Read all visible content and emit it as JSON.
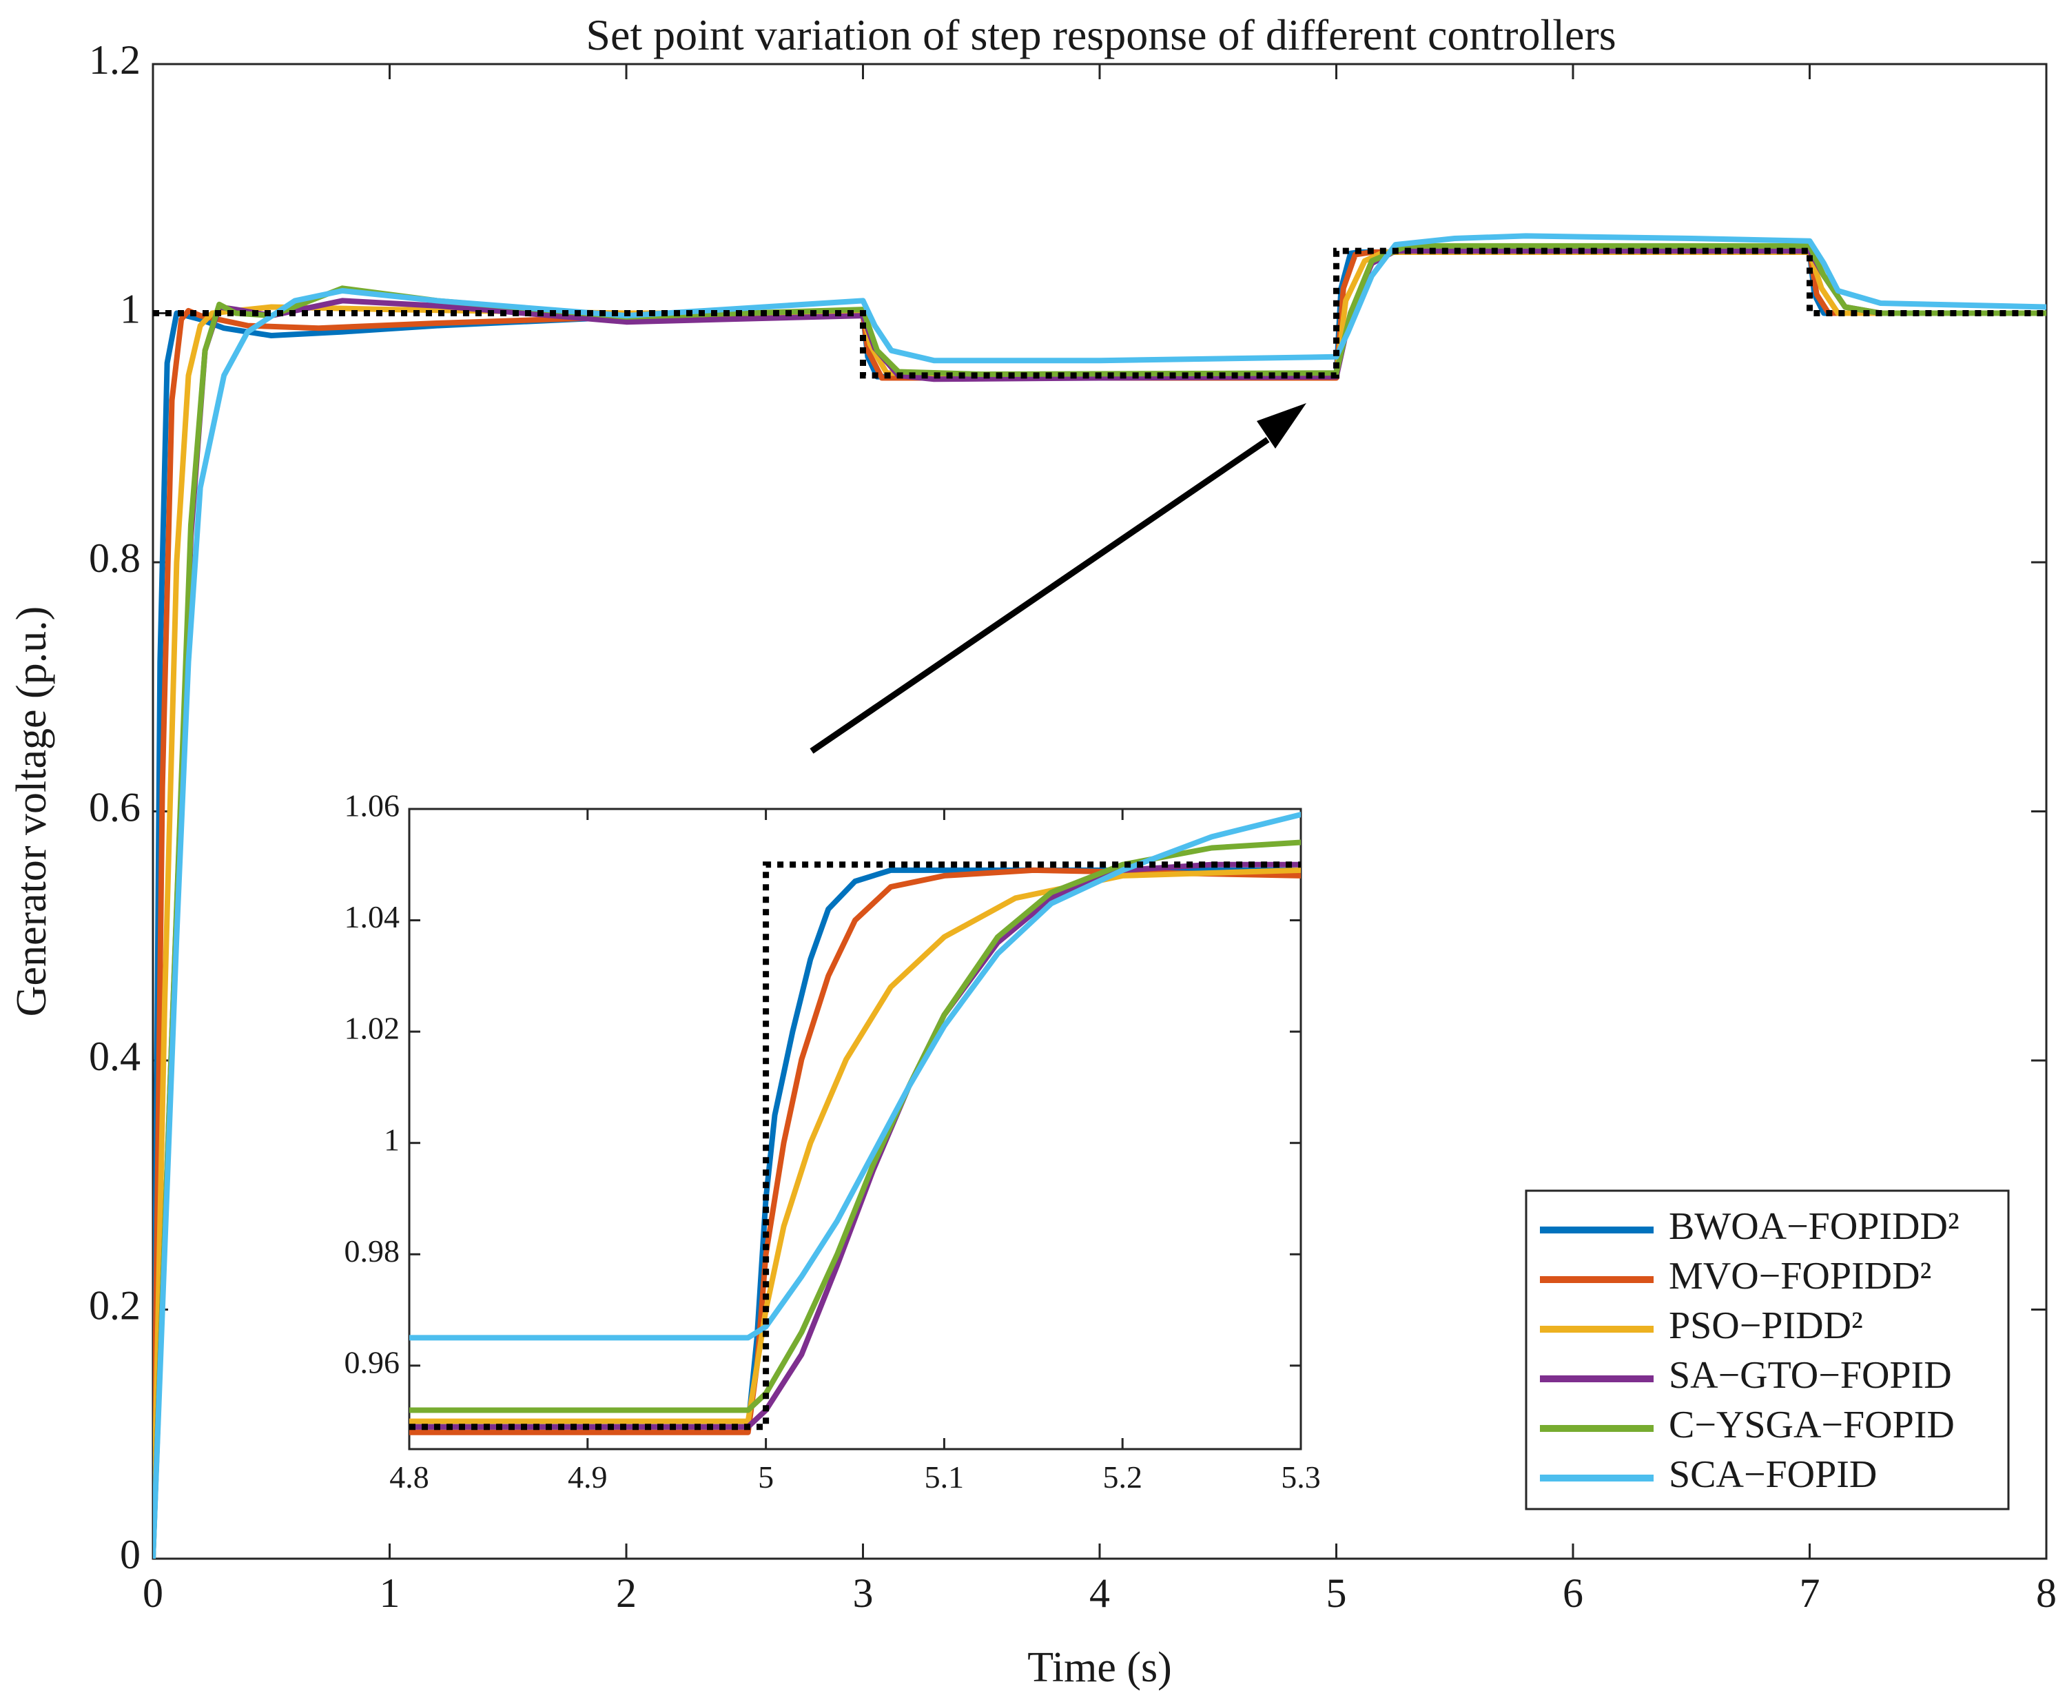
{
  "chart_data": [
    {
      "id": "main",
      "type": "line",
      "title": "Set point variation of step response of different controllers",
      "xlabel": "Time (s)",
      "ylabel": "Generator voltage (p.u.)",
      "xlim": [
        0,
        8
      ],
      "ylim": [
        0,
        1.2
      ],
      "xticks": [
        0,
        1,
        2,
        3,
        4,
        5,
        6,
        7,
        8
      ],
      "yticks": [
        0,
        0.2,
        0.4,
        0.6,
        0.8,
        1,
        1.2
      ],
      "xtick_labels": [
        "0",
        "1",
        "2",
        "3",
        "4",
        "5",
        "6",
        "7",
        "8"
      ],
      "ytick_labels": [
        "0",
        "0.2",
        "0.4",
        "0.6",
        "0.8",
        "1",
        "1.2"
      ],
      "grid": false,
      "legend_position": "bottom-right",
      "reference": {
        "name": "Set point",
        "color": "#000000",
        "style": "dotted",
        "points": [
          [
            0,
            1.0
          ],
          [
            3.0,
            1.0
          ],
          [
            3.0,
            0.95
          ],
          [
            5.0,
            0.95
          ],
          [
            5.0,
            1.05
          ],
          [
            7.0,
            1.05
          ],
          [
            7.0,
            1.0
          ],
          [
            8.0,
            1.0
          ]
        ]
      },
      "series": [
        {
          "name": "BWOA−FOPIDD²",
          "color": "#0072BD",
          "points": [
            [
              0,
              0
            ],
            [
              0.03,
              0.72
            ],
            [
              0.06,
              0.96
            ],
            [
              0.1,
              1.0
            ],
            [
              0.2,
              0.995
            ],
            [
              0.3,
              0.988
            ],
            [
              0.5,
              0.982
            ],
            [
              0.8,
              0.985
            ],
            [
              1.2,
              0.99
            ],
            [
              2.0,
              0.997
            ],
            [
              3.0,
              0.999
            ],
            [
              3.02,
              0.965
            ],
            [
              3.06,
              0.949
            ],
            [
              3.5,
              0.949
            ],
            [
              5.0,
              0.949
            ],
            [
              5.02,
              1.02
            ],
            [
              5.06,
              1.048
            ],
            [
              5.1,
              1.049
            ],
            [
              7.0,
              1.049
            ],
            [
              7.02,
              1.015
            ],
            [
              7.06,
              1.0
            ],
            [
              8.0,
              1.0
            ]
          ]
        },
        {
          "name": "MVO−FOPIDD²",
          "color": "#D95319",
          "points": [
            [
              0,
              0
            ],
            [
              0.04,
              0.62
            ],
            [
              0.08,
              0.93
            ],
            [
              0.12,
              0.995
            ],
            [
              0.15,
              1.002
            ],
            [
              0.2,
              0.998
            ],
            [
              0.4,
              0.99
            ],
            [
              0.7,
              0.988
            ],
            [
              1.2,
              0.992
            ],
            [
              2.0,
              0.997
            ],
            [
              3.0,
              0.999
            ],
            [
              3.02,
              0.97
            ],
            [
              3.08,
              0.948
            ],
            [
              3.5,
              0.948
            ],
            [
              5.0,
              0.948
            ],
            [
              5.03,
              1.02
            ],
            [
              5.08,
              1.047
            ],
            [
              5.15,
              1.049
            ],
            [
              7.0,
              1.049
            ],
            [
              7.03,
              1.015
            ],
            [
              7.08,
              1.0
            ],
            [
              8.0,
              1.0
            ]
          ]
        },
        {
          "name": "PSO−PIDD²",
          "color": "#EDB120",
          "points": [
            [
              0,
              0
            ],
            [
              0.05,
              0.45
            ],
            [
              0.1,
              0.8
            ],
            [
              0.15,
              0.95
            ],
            [
              0.2,
              0.99
            ],
            [
              0.25,
              1.0
            ],
            [
              0.5,
              1.005
            ],
            [
              1.0,
              1.003
            ],
            [
              2.0,
              1.0
            ],
            [
              3.0,
              1.0
            ],
            [
              3.03,
              0.975
            ],
            [
              3.1,
              0.952
            ],
            [
              3.5,
              0.95
            ],
            [
              5.0,
              0.95
            ],
            [
              5.04,
              1.01
            ],
            [
              5.12,
              1.042
            ],
            [
              5.2,
              1.049
            ],
            [
              7.0,
              1.049
            ],
            [
              7.05,
              1.02
            ],
            [
              7.12,
              1.0
            ],
            [
              8.0,
              1.0
            ]
          ]
        },
        {
          "name": "SA−GTO−FOPID",
          "color": "#7E2F8E",
          "points": [
            [
              0,
              0
            ],
            [
              0.08,
              0.42
            ],
            [
              0.16,
              0.82
            ],
            [
              0.22,
              0.97
            ],
            [
              0.28,
              1.005
            ],
            [
              0.35,
              1.003
            ],
            [
              0.5,
              0.998
            ],
            [
              0.8,
              1.01
            ],
            [
              1.2,
              1.006
            ],
            [
              2.0,
              0.993
            ],
            [
              3.0,
              0.998
            ],
            [
              3.05,
              0.972
            ],
            [
              3.15,
              0.95
            ],
            [
              3.3,
              0.947
            ],
            [
              4.0,
              0.948
            ],
            [
              5.0,
              0.949
            ],
            [
              5.06,
              1.0
            ],
            [
              5.15,
              1.04
            ],
            [
              5.25,
              1.05
            ],
            [
              7.0,
              1.05
            ],
            [
              7.06,
              1.03
            ],
            [
              7.15,
              1.005
            ],
            [
              7.3,
              1.0
            ],
            [
              8.0,
              1.0
            ]
          ]
        },
        {
          "name": "C−YSGA−FOPID",
          "color": "#77AC30",
          "points": [
            [
              0,
              0
            ],
            [
              0.08,
              0.42
            ],
            [
              0.16,
              0.83
            ],
            [
              0.22,
              0.97
            ],
            [
              0.28,
              1.007
            ],
            [
              0.35,
              1.0
            ],
            [
              0.5,
              0.998
            ],
            [
              0.8,
              1.02
            ],
            [
              1.2,
              1.01
            ],
            [
              2.0,
              0.997
            ],
            [
              3.0,
              1.003
            ],
            [
              3.06,
              0.97
            ],
            [
              3.15,
              0.953
            ],
            [
              3.5,
              0.951
            ],
            [
              5.0,
              0.952
            ],
            [
              5.06,
              1.0
            ],
            [
              5.15,
              1.042
            ],
            [
              5.3,
              1.054
            ],
            [
              7.0,
              1.054
            ],
            [
              7.06,
              1.03
            ],
            [
              7.15,
              1.005
            ],
            [
              7.3,
              1.0
            ],
            [
              8.0,
              1.0
            ]
          ]
        },
        {
          "name": "SCA−FOPID",
          "color": "#4DBEEE",
          "points": [
            [
              0,
              0
            ],
            [
              0.05,
              0.25
            ],
            [
              0.1,
              0.5
            ],
            [
              0.15,
              0.72
            ],
            [
              0.2,
              0.86
            ],
            [
              0.3,
              0.95
            ],
            [
              0.4,
              0.985
            ],
            [
              0.6,
              1.01
            ],
            [
              0.8,
              1.018
            ],
            [
              1.2,
              1.01
            ],
            [
              2.0,
              0.998
            ],
            [
              3.0,
              1.01
            ],
            [
              3.05,
              0.99
            ],
            [
              3.12,
              0.97
            ],
            [
              3.3,
              0.962
            ],
            [
              4.0,
              0.962
            ],
            [
              5.0,
              0.965
            ],
            [
              5.05,
              0.985
            ],
            [
              5.15,
              1.03
            ],
            [
              5.25,
              1.055
            ],
            [
              5.5,
              1.06
            ],
            [
              5.8,
              1.062
            ],
            [
              6.5,
              1.06
            ],
            [
              7.0,
              1.058
            ],
            [
              7.06,
              1.04
            ],
            [
              7.12,
              1.018
            ],
            [
              7.3,
              1.008
            ],
            [
              8.0,
              1.005
            ]
          ]
        }
      ]
    },
    {
      "id": "inset",
      "type": "line",
      "title": "",
      "xlabel": "",
      "ylabel": "",
      "xlim": [
        4.8,
        5.3
      ],
      "ylim": [
        0.945,
        1.06
      ],
      "xticks": [
        4.8,
        4.9,
        5.0,
        5.1,
        5.2,
        5.3
      ],
      "yticks": [
        0.96,
        0.98,
        1.0,
        1.02,
        1.04,
        1.06
      ],
      "xtick_labels": [
        "4.8",
        "4.9",
        "5",
        "5.1",
        "5.2",
        "5.3"
      ],
      "ytick_labels": [
        "0.96",
        "0.98",
        "1",
        "1.02",
        "1.04",
        "1.06"
      ],
      "grid": false,
      "reference": {
        "name": "Set point",
        "color": "#000000",
        "style": "dotted",
        "points": [
          [
            4.8,
            0.949
          ],
          [
            5.0,
            0.949
          ],
          [
            5.0,
            1.05
          ],
          [
            5.3,
            1.05
          ]
        ]
      },
      "series": [
        {
          "name": "BWOA−FOPIDD²",
          "color": "#0072BD",
          "points": [
            [
              4.8,
              0.949
            ],
            [
              4.99,
              0.949
            ],
            [
              4.995,
              0.965
            ],
            [
              5.0,
              0.99
            ],
            [
              5.005,
              1.005
            ],
            [
              5.015,
              1.02
            ],
            [
              5.025,
              1.033
            ],
            [
              5.035,
              1.042
            ],
            [
              5.05,
              1.047
            ],
            [
              5.07,
              1.049
            ],
            [
              5.1,
              1.049
            ],
            [
              5.3,
              1.049
            ]
          ]
        },
        {
          "name": "MVO−FOPIDD²",
          "color": "#D95319",
          "points": [
            [
              4.8,
              0.948
            ],
            [
              4.99,
              0.948
            ],
            [
              4.995,
              0.96
            ],
            [
              5.0,
              0.98
            ],
            [
              5.01,
              1.0
            ],
            [
              5.02,
              1.015
            ],
            [
              5.035,
              1.03
            ],
            [
              5.05,
              1.04
            ],
            [
              5.07,
              1.046
            ],
            [
              5.1,
              1.048
            ],
            [
              5.15,
              1.049
            ],
            [
              5.3,
              1.048
            ]
          ]
        },
        {
          "name": "PSO−PIDD²",
          "color": "#EDB120",
          "points": [
            [
              4.8,
              0.95
            ],
            [
              4.99,
              0.95
            ],
            [
              4.995,
              0.96
            ],
            [
              5.0,
              0.97
            ],
            [
              5.01,
              0.985
            ],
            [
              5.025,
              1.0
            ],
            [
              5.045,
              1.015
            ],
            [
              5.07,
              1.028
            ],
            [
              5.1,
              1.037
            ],
            [
              5.14,
              1.044
            ],
            [
              5.2,
              1.048
            ],
            [
              5.3,
              1.049
            ]
          ]
        },
        {
          "name": "SA−GTO−FOPID",
          "color": "#7E2F8E",
          "points": [
            [
              4.8,
              0.949
            ],
            [
              4.99,
              0.949
            ],
            [
              5.0,
              0.952
            ],
            [
              5.02,
              0.962
            ],
            [
              5.04,
              0.978
            ],
            [
              5.06,
              0.995
            ],
            [
              5.08,
              1.01
            ],
            [
              5.1,
              1.023
            ],
            [
              5.13,
              1.036
            ],
            [
              5.16,
              1.044
            ],
            [
              5.2,
              1.049
            ],
            [
              5.25,
              1.05
            ],
            [
              5.3,
              1.05
            ]
          ]
        },
        {
          "name": "C−YSGA−FOPID",
          "color": "#77AC30",
          "points": [
            [
              4.8,
              0.952
            ],
            [
              4.99,
              0.952
            ],
            [
              5.0,
              0.955
            ],
            [
              5.02,
              0.966
            ],
            [
              5.04,
              0.98
            ],
            [
              5.06,
              0.996
            ],
            [
              5.08,
              1.01
            ],
            [
              5.1,
              1.023
            ],
            [
              5.13,
              1.037
            ],
            [
              5.16,
              1.045
            ],
            [
              5.2,
              1.05
            ],
            [
              5.25,
              1.053
            ],
            [
              5.3,
              1.054
            ]
          ]
        },
        {
          "name": "SCA−FOPID",
          "color": "#4DBEEE",
          "points": [
            [
              4.8,
              0.965
            ],
            [
              4.99,
              0.965
            ],
            [
              5.0,
              0.967
            ],
            [
              5.02,
              0.976
            ],
            [
              5.04,
              0.986
            ],
            [
              5.06,
              0.998
            ],
            [
              5.08,
              1.01
            ],
            [
              5.1,
              1.021
            ],
            [
              5.13,
              1.034
            ],
            [
              5.16,
              1.043
            ],
            [
              5.2,
              1.049
            ],
            [
              5.25,
              1.055
            ],
            [
              5.3,
              1.059
            ]
          ]
        }
      ]
    }
  ]
}
